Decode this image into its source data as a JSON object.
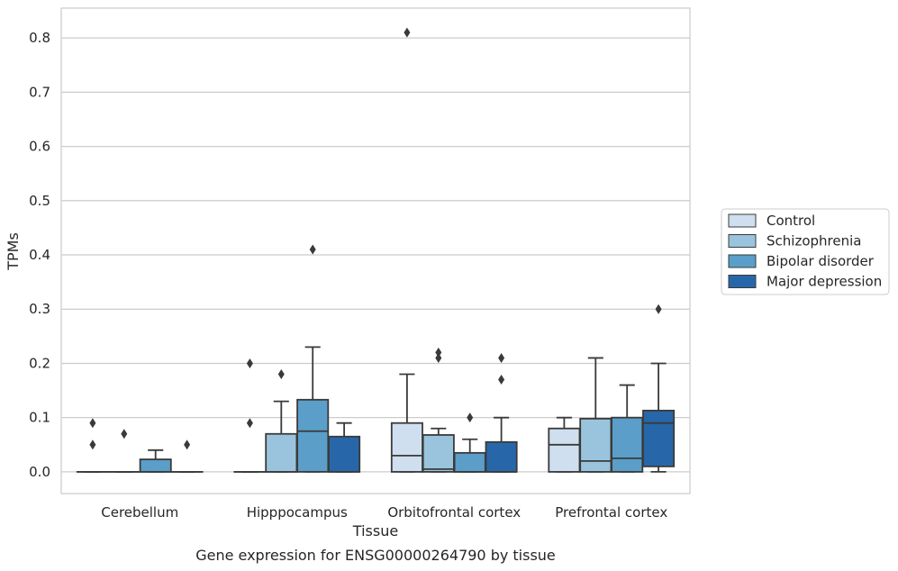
{
  "chart_data": {
    "type": "box",
    "title": "",
    "caption": "Gene expression for ENSG00000264790 by tissue",
    "xlabel": "Tissue",
    "ylabel": "TPMs",
    "ylim": [
      -0.04,
      0.855
    ],
    "yticks": [
      0.0,
      0.1,
      0.2,
      0.3,
      0.4,
      0.5,
      0.6,
      0.7,
      0.8
    ],
    "ytick_labels": [
      "0.0",
      "0.1",
      "0.2",
      "0.3",
      "0.4",
      "0.5",
      "0.6",
      "0.7",
      "0.8"
    ],
    "grid": "horizontal",
    "legend_position": "outside-right",
    "categories": [
      "Cerebellum",
      "Hipppocampus",
      "Orbitofrontal cortex",
      "Prefrontal cortex"
    ],
    "series": [
      {
        "name": "Control",
        "color": "#cfdfef",
        "boxes": [
          {
            "q1": 0.0,
            "median": 0.0,
            "q3": 0.0,
            "whislo": 0.0,
            "whishi": 0.0,
            "fliers": [
              0.09,
              0.05
            ]
          },
          {
            "q1": 0.0,
            "median": 0.0,
            "q3": 0.0,
            "whislo": 0.0,
            "whishi": 0.0,
            "fliers": [
              0.2,
              0.09
            ]
          },
          {
            "q1": 0.0,
            "median": 0.03,
            "q3": 0.09,
            "whislo": 0.0,
            "whishi": 0.18,
            "fliers": [
              0.81
            ]
          },
          {
            "q1": 0.0,
            "median": 0.05,
            "q3": 0.08,
            "whislo": 0.0,
            "whishi": 0.1,
            "fliers": []
          }
        ]
      },
      {
        "name": "Schizophrenia",
        "color": "#9ac4dd",
        "boxes": [
          {
            "q1": 0.0,
            "median": 0.0,
            "q3": 0.0,
            "whislo": 0.0,
            "whishi": 0.0,
            "fliers": [
              0.07
            ]
          },
          {
            "q1": 0.0,
            "median": 0.0,
            "q3": 0.07,
            "whislo": 0.0,
            "whishi": 0.13,
            "fliers": [
              0.18
            ]
          },
          {
            "q1": 0.0,
            "median": 0.005,
            "q3": 0.068,
            "whislo": 0.0,
            "whishi": 0.08,
            "fliers": [
              0.22,
              0.21
            ]
          },
          {
            "q1": 0.0,
            "median": 0.02,
            "q3": 0.098,
            "whislo": 0.0,
            "whishi": 0.21,
            "fliers": []
          }
        ]
      },
      {
        "name": "Bipolar disorder",
        "color": "#5a9ec9",
        "boxes": [
          {
            "q1": 0.0,
            "median": 0.0,
            "q3": 0.023,
            "whislo": 0.0,
            "whishi": 0.04,
            "fliers": []
          },
          {
            "q1": 0.0,
            "median": 0.075,
            "q3": 0.133,
            "whislo": 0.0,
            "whishi": 0.23,
            "fliers": [
              0.41
            ]
          },
          {
            "q1": 0.0,
            "median": 0.0,
            "q3": 0.035,
            "whislo": 0.0,
            "whishi": 0.06,
            "fliers": [
              0.1
            ]
          },
          {
            "q1": 0.0,
            "median": 0.025,
            "q3": 0.1,
            "whislo": 0.0,
            "whishi": 0.16,
            "fliers": []
          }
        ]
      },
      {
        "name": "Major depression",
        "color": "#2767a9",
        "boxes": [
          {
            "q1": 0.0,
            "median": 0.0,
            "q3": 0.0,
            "whislo": 0.0,
            "whishi": 0.0,
            "fliers": [
              0.05
            ]
          },
          {
            "q1": 0.0,
            "median": 0.0,
            "q3": 0.065,
            "whislo": 0.0,
            "whishi": 0.09,
            "fliers": []
          },
          {
            "q1": 0.0,
            "median": 0.0,
            "q3": 0.055,
            "whislo": 0.0,
            "whishi": 0.1,
            "fliers": [
              0.21,
              0.17
            ]
          },
          {
            "q1": 0.01,
            "median": 0.09,
            "q3": 0.113,
            "whislo": 0.0,
            "whishi": 0.2,
            "fliers": [
              0.3
            ]
          }
        ]
      }
    ]
  }
}
